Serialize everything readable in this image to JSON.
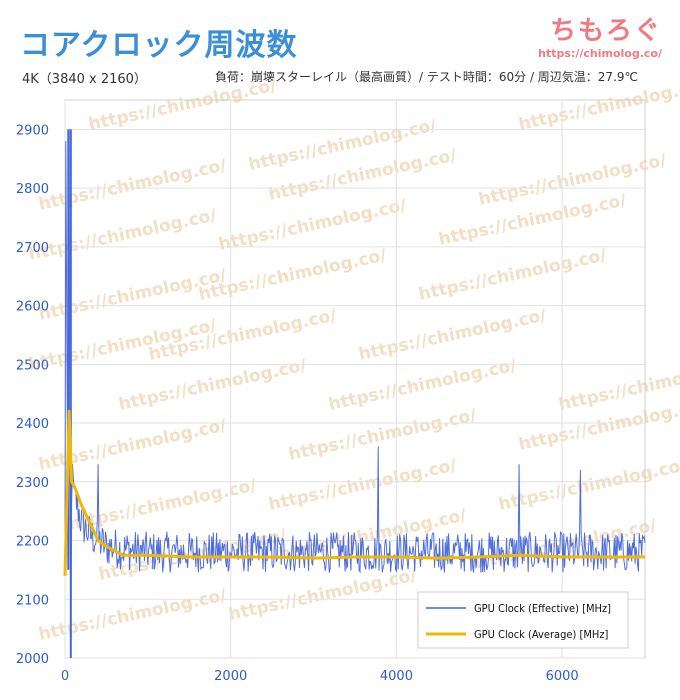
{
  "header": {
    "title": "コアクロック周波数",
    "subtitle": "4K（3840 x 2160）",
    "conditions": "負荷：崩壊スターレイル（最高画質）/ テスト時間：60分 / 周辺気温：27.9℃"
  },
  "logo": {
    "text": "ちもろぐ",
    "url": "https://chimolog.co/"
  },
  "watermark": {
    "text": "https://chimolog.co/"
  },
  "colors": {
    "effective": "#4466dd",
    "average": "#f0b800",
    "axis": "#2f5cc7",
    "grid": "#e2e2e2"
  },
  "chart_data": {
    "type": "line",
    "title": "コアクロック周波数",
    "xlabel": "",
    "ylabel": "",
    "xlim": [
      0,
      7000
    ],
    "ylim": [
      2000,
      2950
    ],
    "x_ticks": [
      0,
      2000,
      4000,
      6000
    ],
    "y_ticks": [
      2000,
      2100,
      2200,
      2300,
      2400,
      2500,
      2600,
      2700,
      2800,
      2900
    ],
    "grid": true,
    "legend": "bottom-right",
    "series": [
      {
        "name": "GPU Clock (Effective) [MHz]",
        "color": "#4466dd",
        "approx": {
          "x": [
            0,
            10,
            30,
            60,
            100,
            150,
            200,
            300,
            400,
            500,
            700,
            1000,
            1500,
            2000,
            3000,
            4000,
            5000,
            6000,
            7000
          ],
          "y": [
            2150,
            2880,
            2300,
            2290,
            2280,
            2260,
            2230,
            2210,
            2200,
            2190,
            2185,
            2180,
            2180,
            2180,
            2180,
            2180,
            2180,
            2180,
            2180
          ],
          "band": 35
        },
        "spikes": [
          {
            "x": 50,
            "y": 2900
          },
          {
            "x": 70,
            "y": 2000
          },
          {
            "x": 90,
            "y": 2330
          },
          {
            "x": 400,
            "y": 2330
          },
          {
            "x": 3780,
            "y": 2360
          },
          {
            "x": 5480,
            "y": 2330
          },
          {
            "x": 6220,
            "y": 2320
          }
        ]
      },
      {
        "name": "GPU Clock (Average) [MHz]",
        "color": "#f0b800",
        "x": [
          0,
          50,
          80,
          120,
          200,
          300,
          400,
          500,
          700,
          1000,
          1500,
          2000,
          2500,
          3000,
          3500,
          4000,
          4500,
          5000,
          5500,
          6000,
          6500,
          7000
        ],
        "y": [
          2140,
          2420,
          2300,
          2290,
          2260,
          2230,
          2200,
          2190,
          2175,
          2175,
          2172,
          2172,
          2172,
          2170,
          2172,
          2172,
          2170,
          2172,
          2175,
          2172,
          2172,
          2172
        ]
      }
    ]
  }
}
